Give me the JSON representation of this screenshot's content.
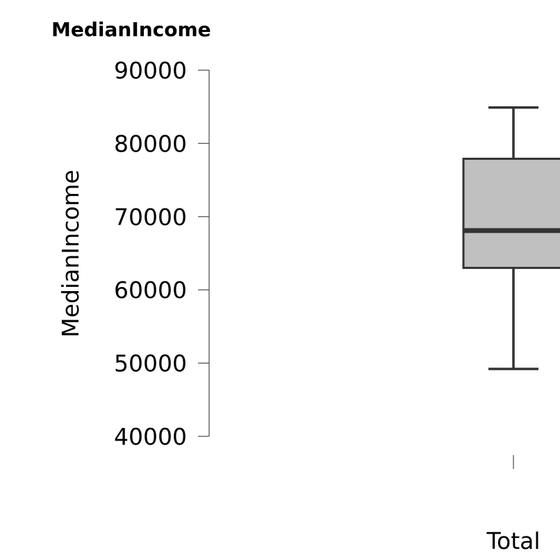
{
  "chart_data": {
    "type": "boxplot",
    "title": "MedianIncome",
    "ylabel": "MedianIncome",
    "xlabel": "",
    "ylim": [
      40000,
      90000
    ],
    "yticks": [
      40000,
      50000,
      60000,
      70000,
      80000,
      90000
    ],
    "categories": [
      "Total"
    ],
    "boxes": [
      {
        "category": "Total",
        "whisker_low": 49200,
        "q1": 63000,
        "median": 68100,
        "q3": 77900,
        "whisker_high": 84900
      }
    ],
    "colors": {
      "box_fill": "#c0c0c0",
      "box_stroke": "#333333",
      "axis": "#555555"
    }
  }
}
